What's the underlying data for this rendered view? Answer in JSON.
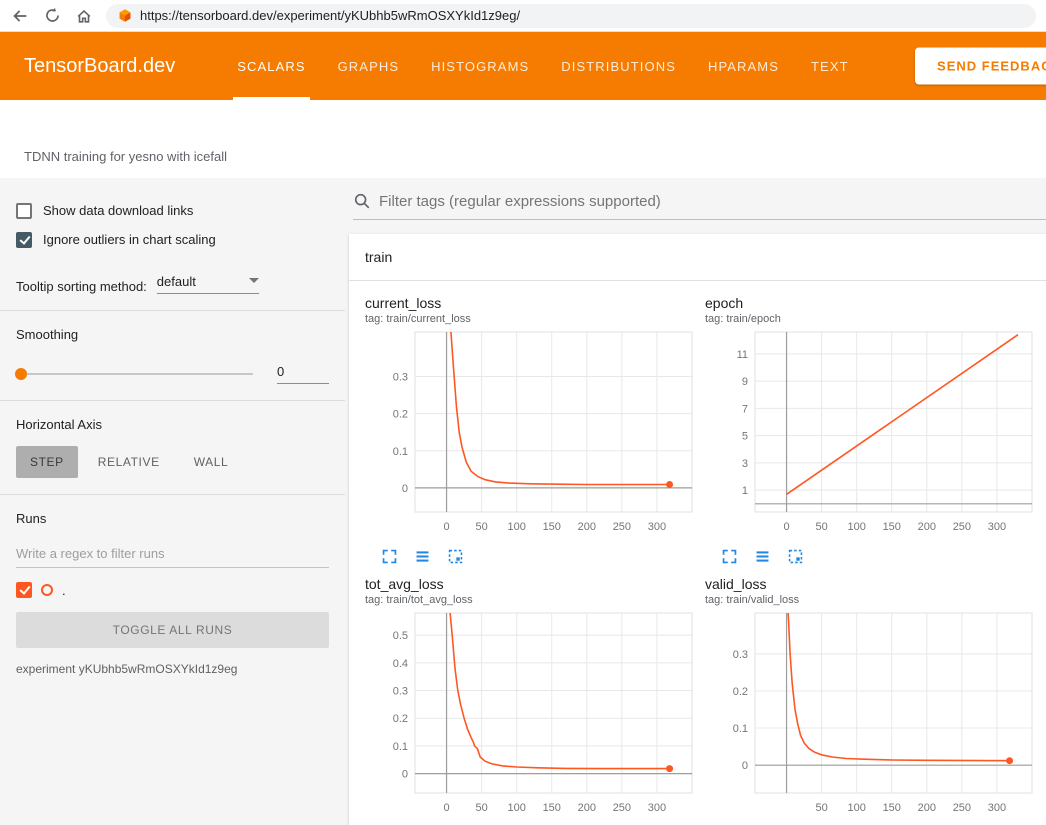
{
  "browser": {
    "url": "https://tensorboard.dev/experiment/yKUbhb5wRmOSXYkId1z9eg/"
  },
  "header": {
    "logo": "TensorBoard.dev",
    "nav": [
      {
        "label": "SCALARS",
        "active": true
      },
      {
        "label": "GRAPHS",
        "active": false
      },
      {
        "label": "HISTOGRAMS",
        "active": false
      },
      {
        "label": "DISTRIBUTIONS",
        "active": false
      },
      {
        "label": "HPARAMS",
        "active": false
      },
      {
        "label": "TEXT",
        "active": false
      }
    ],
    "feedback_label": "SEND FEEDBACK"
  },
  "experiment": {
    "title": "TDNN training for yesno with icefall",
    "id_line": "experiment yKUbhb5wRmOSXYkId1z9eg"
  },
  "sidebar": {
    "checkboxes": [
      {
        "label": "Show data download links",
        "checked": false
      },
      {
        "label": "Ignore outliers in chart scaling",
        "checked": true
      }
    ],
    "tooltip_sorting": {
      "label": "Tooltip sorting method:",
      "value": "default"
    },
    "smoothing": {
      "label": "Smoothing",
      "value": "0"
    },
    "horizontal_axis": {
      "label": "Horizontal Axis",
      "options": [
        "STEP",
        "RELATIVE",
        "WALL"
      ],
      "selected": "STEP"
    },
    "runs": {
      "label": "Runs",
      "filter_placeholder": "Write a regex to filter runs",
      "run_items": [
        {
          "name": ".",
          "checked": true,
          "color": "#ff5722"
        }
      ],
      "toggle_all_label": "TOGGLE ALL RUNS"
    }
  },
  "main": {
    "filter_placeholder": "Filter tags (regular expressions supported)",
    "section_title": "train"
  },
  "colors": {
    "header_orange": "#f57c00",
    "run_color": "#ff5722",
    "chart_icon_blue": "#1e88e5"
  },
  "chart_data": [
    {
      "type": "line",
      "title": "current_loss",
      "tag": "tag: train/current_loss",
      "series_name": ".",
      "color": "#ff5722",
      "xlim": [
        -45,
        350
      ],
      "ylim": [
        -0.065,
        0.42
      ],
      "x_ticks": [
        0,
        50,
        100,
        150,
        200,
        250,
        300
      ],
      "y_ticks": [
        0,
        0.1,
        0.2,
        0.3
      ],
      "points": [
        [
          5,
          0.45
        ],
        [
          10,
          0.32
        ],
        [
          14,
          0.22
        ],
        [
          18,
          0.15
        ],
        [
          22,
          0.11
        ],
        [
          28,
          0.07
        ],
        [
          35,
          0.045
        ],
        [
          45,
          0.03
        ],
        [
          55,
          0.022
        ],
        [
          70,
          0.016
        ],
        [
          90,
          0.013
        ],
        [
          120,
          0.011
        ],
        [
          160,
          0.01
        ],
        [
          200,
          0.009
        ],
        [
          250,
          0.009
        ],
        [
          318,
          0.009
        ]
      ],
      "end_dot": [
        318,
        0.009
      ]
    },
    {
      "type": "line",
      "title": "epoch",
      "tag": "tag: train/epoch",
      "series_name": ".",
      "color": "#ff5722",
      "xlim": [
        -45,
        350
      ],
      "ylim": [
        -0.6,
        12.6
      ],
      "x_ticks": [
        0,
        50,
        100,
        150,
        200,
        250,
        300
      ],
      "y_ticks": [
        1,
        3,
        5,
        7,
        9,
        11
      ],
      "points": [
        [
          0,
          0.7
        ],
        [
          330,
          12.4
        ]
      ],
      "end_dot": null
    },
    {
      "type": "line",
      "title": "tot_avg_loss",
      "tag": "tag: train/tot_avg_loss",
      "series_name": ".",
      "color": "#ff5722",
      "xlim": [
        -45,
        350
      ],
      "ylim": [
        -0.07,
        0.58
      ],
      "x_ticks": [
        0,
        50,
        100,
        150,
        200,
        250,
        300
      ],
      "y_ticks": [
        0,
        0.1,
        0.2,
        0.3,
        0.4,
        0.5
      ],
      "points": [
        [
          5,
          0.58
        ],
        [
          8,
          0.5
        ],
        [
          12,
          0.38
        ],
        [
          16,
          0.3
        ],
        [
          20,
          0.25
        ],
        [
          25,
          0.2
        ],
        [
          30,
          0.16
        ],
        [
          35,
          0.13
        ],
        [
          38,
          0.115
        ],
        [
          40,
          0.1
        ],
        [
          44,
          0.09
        ],
        [
          48,
          0.06
        ],
        [
          55,
          0.045
        ],
        [
          65,
          0.035
        ],
        [
          80,
          0.028
        ],
        [
          100,
          0.024
        ],
        [
          130,
          0.021
        ],
        [
          170,
          0.019
        ],
        [
          220,
          0.018
        ],
        [
          318,
          0.018
        ]
      ],
      "end_dot": [
        318,
        0.018
      ]
    },
    {
      "type": "line",
      "title": "valid_loss",
      "tag": "tag: train/valid_loss",
      "series_name": ".",
      "color": "#ff5722",
      "xlim": [
        -45,
        350
      ],
      "ylim": [
        -0.075,
        0.41
      ],
      "x_ticks": [
        50,
        100,
        150,
        200,
        250,
        300
      ],
      "y_ticks": [
        0,
        0.1,
        0.2,
        0.3
      ],
      "points": [
        [
          2,
          0.42
        ],
        [
          5,
          0.3
        ],
        [
          8,
          0.22
        ],
        [
          12,
          0.15
        ],
        [
          16,
          0.11
        ],
        [
          20,
          0.08
        ],
        [
          25,
          0.06
        ],
        [
          32,
          0.045
        ],
        [
          40,
          0.035
        ],
        [
          50,
          0.028
        ],
        [
          65,
          0.022
        ],
        [
          85,
          0.018
        ],
        [
          110,
          0.016
        ],
        [
          150,
          0.014
        ],
        [
          200,
          0.013
        ],
        [
          318,
          0.012
        ]
      ],
      "end_dot": [
        318,
        0.012
      ]
    }
  ]
}
